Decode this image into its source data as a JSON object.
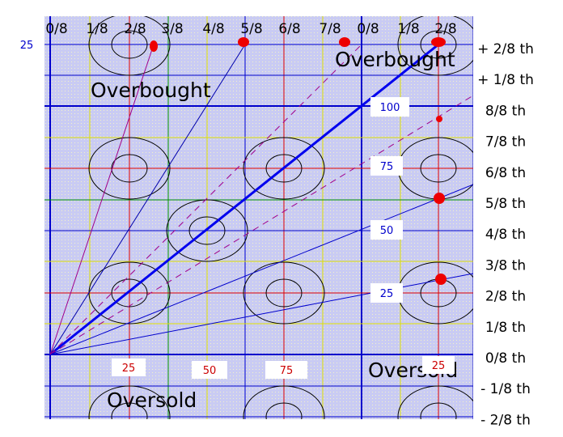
{
  "corner_label": "25",
  "top_labels": [
    "0/8",
    "1/8",
    "2/8",
    "3/8",
    "4/8",
    "5/8",
    "6/8",
    "7/8",
    "0/8",
    "1/8",
    "2/8"
  ],
  "right_labels": [
    "+ 2/8 th",
    "+ 1/8 th",
    "8/8 th",
    "7/8 th",
    "6/8 th",
    "5/8 th",
    "4/8 th",
    "3/8 th",
    "2/8 th",
    "1/8 th",
    "0/8 th",
    "- 1/8 th",
    "- 2/8 th"
  ],
  "zone_labels": [
    "Overbought",
    "Overbought",
    "Oversold",
    "Oversold"
  ],
  "fan_labels": [
    "100",
    "75",
    "50",
    "25"
  ],
  "bottom_labels": [
    "25",
    "50",
    "75",
    "25"
  ]
}
